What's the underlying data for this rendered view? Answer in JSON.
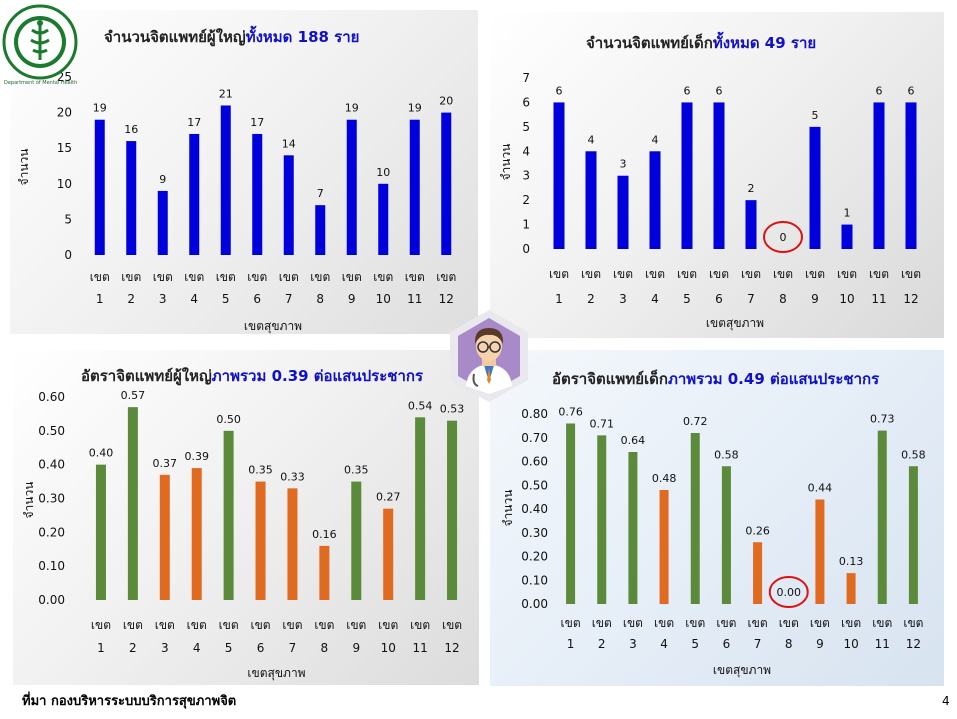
{
  "logo": {
    "ring_text": "MINISTRY OF PUBLIC HEALTH",
    "caption": "Department of Mental Health",
    "icon": "ministry-seal-icon"
  },
  "doctor_icon": "doctor-avatar-icon",
  "footer": {
    "source": "ที่มา กองบริหารระบบบริการสุขภาพจิต",
    "page_number": "4"
  },
  "chart_data": [
    {
      "type": "bar",
      "title_prefix": "จำนวนจิตแพทย์ผู้ใหญ่",
      "title_highlight": "ทั้งหมด 188 ราย",
      "xlabel": "เขตสุขภาพ",
      "ylabel": "จำนวน",
      "ylim": [
        0,
        25
      ],
      "yticks": [
        "0",
        "5",
        "10",
        "15",
        "20",
        "25"
      ],
      "categories": [
        "เขต 1",
        "เขต 2",
        "เขต 3",
        "เขต 4",
        "เขต 5",
        "เขต 6",
        "เขต 7",
        "เขต 8",
        "เขต 9",
        "เขต 10",
        "เขต 11",
        "เขต 12"
      ],
      "cat_top": [
        "เขต",
        "เขต",
        "เขต",
        "เขต",
        "เขต",
        "เขต",
        "เขต",
        "เขต",
        "เขต",
        "เขต",
        "เขต",
        "เขต"
      ],
      "cat_bottom": [
        "1",
        "2",
        "3",
        "4",
        "5",
        "6",
        "7",
        "8",
        "9",
        "10",
        "11",
        "12"
      ],
      "values": [
        19,
        16,
        9,
        17,
        21,
        17,
        14,
        7,
        19,
        10,
        19,
        20
      ],
      "labels": [
        "19",
        "16",
        "9",
        "17",
        "21",
        "17",
        "14",
        "7",
        "19",
        "10",
        "19",
        "20"
      ],
      "colors": [
        "#0000dd"
      ],
      "grid": false
    },
    {
      "type": "bar",
      "title_prefix": "จำนวนจิตแพทย์เด็ก",
      "title_highlight": "ทั้งหมด 49 ราย",
      "xlabel": "เขตสุขภาพ",
      "ylabel": "จำนวน",
      "ylim": [
        0,
        7
      ],
      "yticks": [
        "0",
        "1",
        "2",
        "3",
        "4",
        "5",
        "6",
        "7"
      ],
      "categories": [
        "เขต 1",
        "เขต 2",
        "เขต 3",
        "เขต 4",
        "เขต 5",
        "เขต 6",
        "เขต 7",
        "เขต 8",
        "เขต 9",
        "เขต 10",
        "เขต 11",
        "เขต 12"
      ],
      "cat_top": [
        "เขต",
        "เขต",
        "เขต",
        "เขต",
        "เขต",
        "เขต",
        "เขต",
        "เขต",
        "เขต",
        "เขต",
        "เขต",
        "เขต"
      ],
      "cat_bottom": [
        "1",
        "2",
        "3",
        "4",
        "5",
        "6",
        "7",
        "8",
        "9",
        "10",
        "11",
        "12"
      ],
      "values": [
        6,
        4,
        3,
        4,
        6,
        6,
        2,
        0,
        5,
        1,
        6,
        6
      ],
      "labels": [
        "6",
        "4",
        "3",
        "4",
        "6",
        "6",
        "2",
        "0",
        "5",
        "1",
        "6",
        "6"
      ],
      "colors": [
        "#0000dd"
      ],
      "highlight_index": 7,
      "grid": false
    },
    {
      "type": "bar",
      "title_prefix": "อัตราจิตแพทย์ผู้ใหญ่",
      "title_highlight": "ภาพรวม 0.39 ต่อแสนประชากร",
      "xlabel": "เขตสุขภาพ",
      "ylabel": "จำนวน",
      "ylim": [
        0,
        0.6
      ],
      "yticks": [
        "0.00",
        "0.10",
        "0.20",
        "0.30",
        "0.40",
        "0.50",
        "0.60"
      ],
      "categories": [
        "เขต 1",
        "เขต 2",
        "เขต 3",
        "เขต 4",
        "เขต 5",
        "เขต 6",
        "เขต 7",
        "เขต 8",
        "เขต 9",
        "เขต 10",
        "เขต 11",
        "เขต 12"
      ],
      "cat_top": [
        "เขต",
        "เขต",
        "เขต",
        "เขต",
        "เขต",
        "เขต",
        "เขต",
        "เขต",
        "เขต",
        "เขต",
        "เขต",
        "เขต"
      ],
      "cat_bottom": [
        "1",
        "2",
        "3",
        "4",
        "5",
        "6",
        "7",
        "8",
        "9",
        "10",
        "11",
        "12"
      ],
      "values": [
        0.4,
        0.57,
        0.37,
        0.39,
        0.5,
        0.35,
        0.33,
        0.16,
        0.35,
        0.27,
        0.54,
        0.53
      ],
      "labels": [
        "0.40",
        "0.57",
        "0.37",
        "0.39",
        "0.50",
        "0.35",
        "0.33",
        "0.16",
        "0.35",
        "0.27",
        "0.54",
        "0.53"
      ],
      "colors": [
        "#5b8a3a",
        "#5b8a3a",
        "#e06a20",
        "#e06a20",
        "#5b8a3a",
        "#e06a20",
        "#e06a20",
        "#e06a20",
        "#5b8a3a",
        "#e06a20",
        "#5b8a3a",
        "#5b8a3a"
      ],
      "grid": false
    },
    {
      "type": "bar",
      "title_prefix": "อัตราจิตแพทย์เด็ก",
      "title_highlight": "ภาพรวม 0.49 ต่อแสนประชากร",
      "xlabel": "เขตสุขภาพ",
      "ylabel": "จำนวน",
      "ylim": [
        0,
        0.8
      ],
      "yticks": [
        "0.00",
        "0.10",
        "0.20",
        "0.30",
        "0.40",
        "0.50",
        "0.60",
        "0.70",
        "0.80"
      ],
      "categories": [
        "เขต 1",
        "เขต 2",
        "เขต 3",
        "เขต 4",
        "เขต 5",
        "เขต 6",
        "เขต 7",
        "เขต 8",
        "เขต 9",
        "เขต 10",
        "เขต 11",
        "เขต 12"
      ],
      "cat_top": [
        "เขต",
        "เขต",
        "เขต",
        "เขต",
        "เขต",
        "เขต",
        "เขต",
        "เขต",
        "เขต",
        "เขต",
        "เขต",
        "เขต"
      ],
      "cat_bottom": [
        "1",
        "2",
        "3",
        "4",
        "5",
        "6",
        "7",
        "8",
        "9",
        "10",
        "11",
        "12"
      ],
      "values": [
        0.76,
        0.71,
        0.64,
        0.48,
        0.72,
        0.58,
        0.26,
        0.0,
        0.44,
        0.13,
        0.73,
        0.58
      ],
      "labels": [
        "0.76",
        "0.71",
        "0.64",
        "0.48",
        "0.72",
        "0.58",
        "0.26",
        "0.00",
        "0.44",
        "0.13",
        "0.73",
        "0.58"
      ],
      "colors": [
        "#5b8a3a",
        "#5b8a3a",
        "#5b8a3a",
        "#e06a20",
        "#5b8a3a",
        "#5b8a3a",
        "#e06a20",
        "#e06a20",
        "#e06a20",
        "#e06a20",
        "#5b8a3a",
        "#5b8a3a"
      ],
      "highlight_index": 7,
      "grid": false
    }
  ]
}
